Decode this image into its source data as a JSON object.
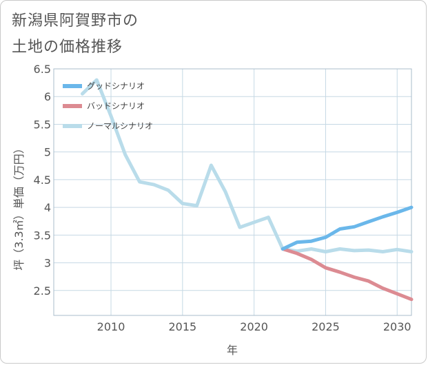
{
  "page": {
    "title_line1": "新潟県阿賀野市の",
    "title_line2": "土地の価格推移"
  },
  "chart_data": {
    "type": "line",
    "xlabel": "年",
    "ylabel": "坪（3.3㎡）単価（万円）",
    "xlim": [
      2006,
      2031
    ],
    "ylim": [
      2.05,
      6.5
    ],
    "xticks": [
      2010,
      2015,
      2020,
      2025,
      2030
    ],
    "yticks": [
      2.5,
      3,
      3.5,
      4,
      4.5,
      5,
      5.5,
      6,
      6.5
    ],
    "grid": true,
    "legend_position": "top-left",
    "series": [
      {
        "name": "グッドシナリオ",
        "color": "#6ab7ea",
        "points": [
          [
            2022,
            3.25
          ],
          [
            2023,
            3.37
          ],
          [
            2024,
            3.39
          ],
          [
            2025,
            3.46
          ],
          [
            2026,
            3.61
          ],
          [
            2027,
            3.65
          ],
          [
            2028,
            3.74
          ],
          [
            2029,
            3.83
          ],
          [
            2030,
            3.91
          ],
          [
            2031,
            4.0
          ]
        ]
      },
      {
        "name": "バッドシナリオ",
        "color": "#dc8b92",
        "points": [
          [
            2022,
            3.25
          ],
          [
            2023,
            3.17
          ],
          [
            2024,
            3.06
          ],
          [
            2025,
            2.91
          ],
          [
            2026,
            2.83
          ],
          [
            2027,
            2.74
          ],
          [
            2028,
            2.67
          ],
          [
            2029,
            2.54
          ],
          [
            2030,
            2.44
          ],
          [
            2031,
            2.34
          ]
        ]
      },
      {
        "name": "ノーマルシナリオ",
        "color": "#b9dcea",
        "points": [
          [
            2008,
            6.05
          ],
          [
            2009,
            6.3
          ],
          [
            2010,
            5.65
          ],
          [
            2011,
            4.95
          ],
          [
            2012,
            4.46
          ],
          [
            2013,
            4.41
          ],
          [
            2014,
            4.31
          ],
          [
            2015,
            4.07
          ],
          [
            2016,
            4.03
          ],
          [
            2017,
            4.76
          ],
          [
            2018,
            4.28
          ],
          [
            2019,
            3.64
          ],
          [
            2020,
            3.73
          ],
          [
            2021,
            3.82
          ],
          [
            2022,
            3.25
          ],
          [
            2023,
            3.21
          ],
          [
            2024,
            3.25
          ],
          [
            2025,
            3.2
          ],
          [
            2026,
            3.25
          ],
          [
            2027,
            3.22
          ],
          [
            2028,
            3.23
          ],
          [
            2029,
            3.2
          ],
          [
            2030,
            3.24
          ],
          [
            2031,
            3.2
          ]
        ]
      }
    ]
  }
}
